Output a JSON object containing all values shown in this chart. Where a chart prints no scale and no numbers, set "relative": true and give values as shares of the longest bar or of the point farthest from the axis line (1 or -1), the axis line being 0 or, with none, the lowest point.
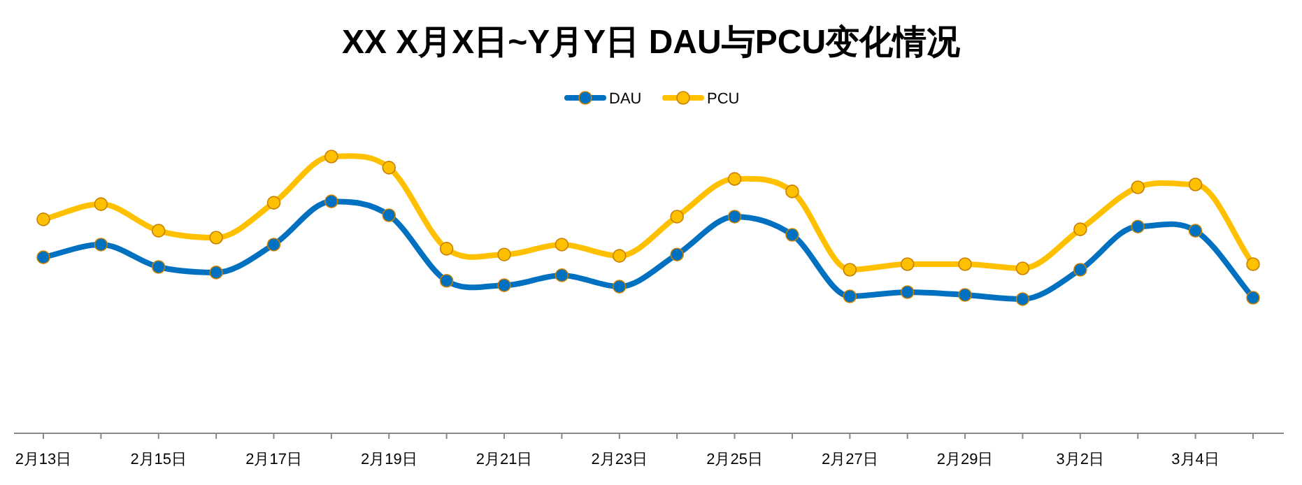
{
  "chart_data": {
    "type": "line",
    "title": "XX X月X日~Y月Y日 DAU与PCU变化情况",
    "relative": true,
    "legend": "top",
    "marker": "circle",
    "line_style": "solid",
    "categories": [
      "2月13日",
      null,
      "2月15日",
      null,
      "2月17日",
      null,
      "2月19日",
      null,
      "2月21日",
      null,
      "2月23日",
      null,
      "2月25日",
      null,
      "2月27日",
      null,
      "2月29日",
      null,
      "3月2日",
      null,
      "3月4日",
      null
    ],
    "series": [
      {
        "name": "DAU",
        "color": "#0070c0",
        "values": [
          0.636,
          0.682,
          0.601,
          0.581,
          0.682,
          0.838,
          0.788,
          0.551,
          0.535,
          0.571,
          0.53,
          0.646,
          0.783,
          0.717,
          0.495,
          0.51,
          0.5,
          0.485,
          0.591,
          0.747,
          0.732,
          0.49
        ]
      },
      {
        "name": "PCU",
        "color": "#ffc000",
        "values": [
          0.773,
          0.828,
          0.732,
          0.707,
          0.833,
          1,
          0.96,
          0.667,
          0.646,
          0.682,
          0.641,
          0.783,
          0.919,
          0.874,
          0.591,
          0.611,
          0.611,
          0.596,
          0.737,
          0.889,
          0.899,
          0.611
        ]
      }
    ]
  }
}
